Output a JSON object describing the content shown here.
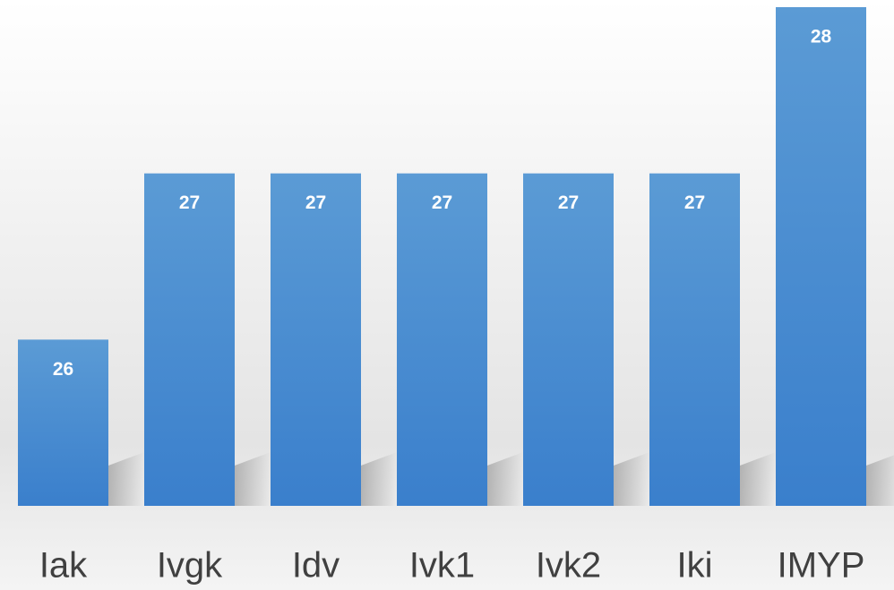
{
  "chart_data": {
    "type": "bar",
    "categories": [
      "Iak",
      "Ivgk",
      "Idv",
      "Ivk1",
      "Ivk2",
      "Iki",
      "IMYP"
    ],
    "values": [
      26,
      27,
      27,
      27,
      27,
      27,
      28
    ],
    "color": "#4a8fd6",
    "ylim": [
      25,
      28
    ]
  }
}
